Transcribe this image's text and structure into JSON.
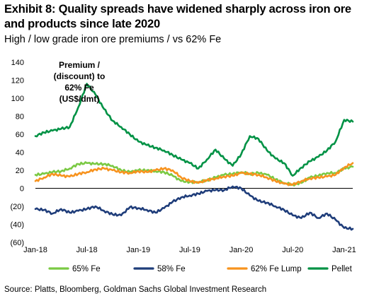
{
  "header": {
    "title": "Exhibit 8: Quality spreads have widened sharply across iron ore and products since late 2020",
    "subtitle": "High / low grade iron ore premiums / vs 62% Fe"
  },
  "footer": {
    "source": "Source: Platts, Bloomberg, Goldman Sachs Global Investment Research"
  },
  "chart_data": {
    "type": "line",
    "title": "Exhibit 8: Quality spreads have widened sharply across iron ore and products since late 2020",
    "subtitle": "High / low grade iron ore premiums / vs 62% Fe",
    "annotation": [
      "Premium /",
      "(discount)  to",
      "62% Fe",
      "(US$/dmt)"
    ],
    "x_start": "Jan-18",
    "x_end": "Feb-21",
    "x_ticks": [
      "Jan-18",
      "Jul-18",
      "Jan-19",
      "Jul-19",
      "Jan-20",
      "Jul-20",
      "Jan-21"
    ],
    "y_ticks": [
      "140",
      "120",
      "100",
      "80",
      "60",
      "40",
      "20",
      "0",
      "(20)",
      "(40)",
      "(60)"
    ],
    "ylim": [
      -60,
      140
    ],
    "grid": false,
    "legend_position": "bottom",
    "series": [
      {
        "name": "65% Fe",
        "color": "#7ac943",
        "points": [
          [
            "Jan-18",
            15
          ],
          [
            "Feb-18",
            16
          ],
          [
            "Mar-18",
            18
          ],
          [
            "Apr-18",
            19
          ],
          [
            "May-18",
            22
          ],
          [
            "Jun-18",
            27
          ],
          [
            "Jul-18",
            28
          ],
          [
            "Aug-18",
            27
          ],
          [
            "Sep-18",
            27
          ],
          [
            "Oct-18",
            25
          ],
          [
            "Nov-18",
            20
          ],
          [
            "Dec-18",
            18
          ],
          [
            "Jan-19",
            20
          ],
          [
            "Feb-19",
            20
          ],
          [
            "Mar-19",
            19
          ],
          [
            "Apr-19",
            18
          ],
          [
            "May-19",
            14
          ],
          [
            "Jun-19",
            8
          ],
          [
            "Jul-19",
            7
          ],
          [
            "Aug-19",
            7
          ],
          [
            "Sep-19",
            9
          ],
          [
            "Oct-19",
            12
          ],
          [
            "Nov-19",
            15
          ],
          [
            "Dec-19",
            16
          ],
          [
            "Jan-20",
            18
          ],
          [
            "Feb-20",
            16
          ],
          [
            "Mar-20",
            17
          ],
          [
            "Apr-20",
            15
          ],
          [
            "May-20",
            10
          ],
          [
            "Jun-20",
            6
          ],
          [
            "Jul-20",
            4
          ],
          [
            "Aug-20",
            6
          ],
          [
            "Sep-20",
            12
          ],
          [
            "Oct-20",
            14
          ],
          [
            "Nov-20",
            17
          ],
          [
            "Dec-20",
            17
          ],
          [
            "Jan-21",
            22
          ],
          [
            "Feb-21",
            24
          ]
        ]
      },
      {
        "name": "58% Fe",
        "color": "#1f3d7a",
        "points": [
          [
            "Jan-18",
            -23
          ],
          [
            "Feb-18",
            -24
          ],
          [
            "Mar-18",
            -28
          ],
          [
            "Apr-18",
            -23
          ],
          [
            "May-18",
            -27
          ],
          [
            "Jun-18",
            -25
          ],
          [
            "Jul-18",
            -23
          ],
          [
            "Aug-18",
            -20
          ],
          [
            "Sep-18",
            -25
          ],
          [
            "Oct-18",
            -29
          ],
          [
            "Nov-18",
            -30
          ],
          [
            "Dec-18",
            -21
          ],
          [
            "Jan-19",
            -22
          ],
          [
            "Feb-19",
            -24
          ],
          [
            "Mar-19",
            -27
          ],
          [
            "Apr-19",
            -22
          ],
          [
            "May-19",
            -15
          ],
          [
            "Jun-19",
            -10
          ],
          [
            "Jul-19",
            -8
          ],
          [
            "Aug-19",
            -6
          ],
          [
            "Sep-19",
            -3
          ],
          [
            "Oct-19",
            -2
          ],
          [
            "Nov-19",
            -2
          ],
          [
            "Dec-19",
            2
          ],
          [
            "Jan-20",
            0
          ],
          [
            "Feb-20",
            -8
          ],
          [
            "Mar-20",
            -14
          ],
          [
            "Apr-20",
            -16
          ],
          [
            "May-20",
            -20
          ],
          [
            "Jun-20",
            -24
          ],
          [
            "Jul-20",
            -30
          ],
          [
            "Aug-20",
            -33
          ],
          [
            "Sep-20",
            -27
          ],
          [
            "Oct-20",
            -33
          ],
          [
            "Nov-20",
            -28
          ],
          [
            "Dec-20",
            -35
          ],
          [
            "Jan-21",
            -44
          ],
          [
            "Feb-21",
            -45
          ]
        ]
      },
      {
        "name": "62% Fe Lump",
        "color": "#f7931e",
        "points": [
          [
            "Jan-18",
            8
          ],
          [
            "Feb-18",
            12
          ],
          [
            "Mar-18",
            16
          ],
          [
            "Apr-18",
            14
          ],
          [
            "May-18",
            13
          ],
          [
            "Jun-18",
            16
          ],
          [
            "Jul-18",
            18
          ],
          [
            "Aug-18",
            21
          ],
          [
            "Sep-18",
            22
          ],
          [
            "Oct-18",
            20
          ],
          [
            "Nov-18",
            18
          ],
          [
            "Dec-18",
            17
          ],
          [
            "Jan-19",
            19
          ],
          [
            "Feb-19",
            18
          ],
          [
            "Mar-19",
            20
          ],
          [
            "Apr-19",
            22
          ],
          [
            "May-19",
            20
          ],
          [
            "Jun-19",
            12
          ],
          [
            "Jul-19",
            8
          ],
          [
            "Aug-19",
            6
          ],
          [
            "Sep-19",
            9
          ],
          [
            "Oct-19",
            11
          ],
          [
            "Nov-19",
            13
          ],
          [
            "Dec-19",
            14
          ],
          [
            "Jan-20",
            17
          ],
          [
            "Feb-20",
            16
          ],
          [
            "Mar-20",
            15
          ],
          [
            "Apr-20",
            12
          ],
          [
            "May-20",
            8
          ],
          [
            "Jun-20",
            5
          ],
          [
            "Jul-20",
            4
          ],
          [
            "Aug-20",
            8
          ],
          [
            "Sep-20",
            11
          ],
          [
            "Oct-20",
            12
          ],
          [
            "Nov-20",
            13
          ],
          [
            "Dec-20",
            15
          ],
          [
            "Jan-21",
            23
          ],
          [
            "Feb-21",
            28
          ]
        ]
      },
      {
        "name": "Pellet",
        "color": "#009245",
        "points": [
          [
            "Jan-18",
            58
          ],
          [
            "Feb-18",
            62
          ],
          [
            "Mar-18",
            64
          ],
          [
            "Apr-18",
            66
          ],
          [
            "May-18",
            68
          ],
          [
            "Jun-18",
            90
          ],
          [
            "Jul-18",
            116
          ],
          [
            "Aug-18",
            104
          ],
          [
            "Sep-18",
            88
          ],
          [
            "Oct-18",
            75
          ],
          [
            "Nov-18",
            68
          ],
          [
            "Dec-18",
            60
          ],
          [
            "Jan-19",
            52
          ],
          [
            "Feb-19",
            48
          ],
          [
            "Mar-19",
            45
          ],
          [
            "Apr-19",
            42
          ],
          [
            "May-19",
            37
          ],
          [
            "Jun-19",
            32
          ],
          [
            "Jul-19",
            28
          ],
          [
            "Aug-19",
            22
          ],
          [
            "Sep-19",
            32
          ],
          [
            "Oct-19",
            43
          ],
          [
            "Nov-19",
            33
          ],
          [
            "Dec-19",
            25
          ],
          [
            "Jan-20",
            38
          ],
          [
            "Feb-20",
            58
          ],
          [
            "Mar-20",
            55
          ],
          [
            "Apr-20",
            42
          ],
          [
            "May-20",
            33
          ],
          [
            "Jun-20",
            28
          ],
          [
            "Jul-20",
            14
          ],
          [
            "Aug-20",
            23
          ],
          [
            "Sep-20",
            30
          ],
          [
            "Oct-20",
            35
          ],
          [
            "Nov-20",
            42
          ],
          [
            "Dec-20",
            52
          ],
          [
            "Jan-21",
            76
          ],
          [
            "Feb-21",
            74
          ]
        ]
      }
    ]
  }
}
